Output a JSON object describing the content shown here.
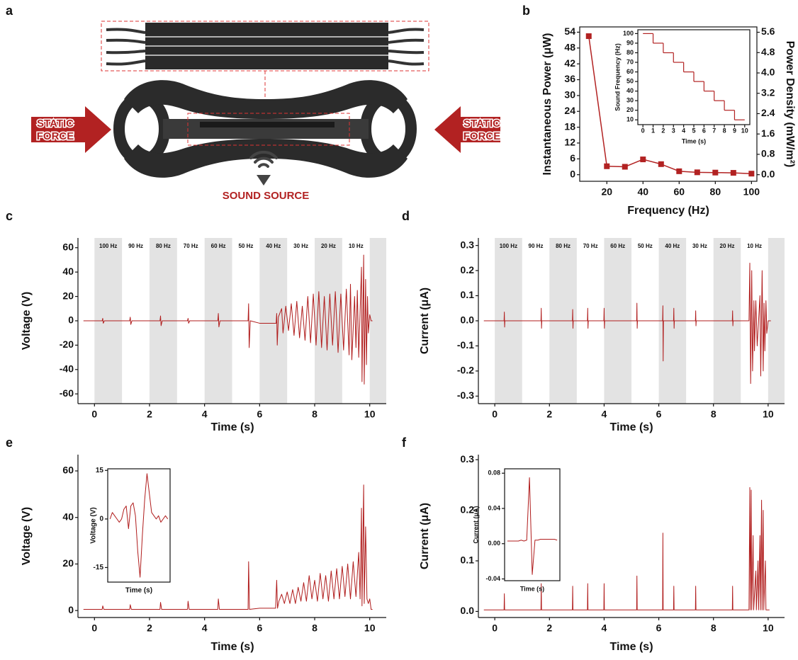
{
  "panel_a": {
    "label": "a",
    "left_force": [
      "STATIC",
      "FORCE"
    ],
    "right_force": [
      "STATIC",
      "FORCE"
    ],
    "sound_source": "SOUND SOURCE"
  },
  "chart_data": [
    {
      "panel": "b",
      "type": "line",
      "xlabel": "Frequency (Hz)",
      "ylabel": "Instantaneous Power (μW)",
      "y2label": "Power Density (mW/m²)",
      "x": [
        10,
        20,
        30,
        40,
        50,
        60,
        70,
        80,
        90,
        100
      ],
      "values": [
        52.5,
        3.2,
        3,
        5.8,
        4,
        1.3,
        0.9,
        0.8,
        0.7,
        0.4
      ],
      "color": "#b22222",
      "marker": "square",
      "box": true,
      "xlim": [
        5,
        103
      ],
      "xticks": [
        20,
        40,
        60,
        80,
        100
      ],
      "ylim": [
        -2.5,
        56
      ],
      "yticks": [
        0,
        6,
        12,
        18,
        24,
        30,
        36,
        42,
        48,
        54
      ],
      "y2lim": [
        -0.26,
        5.81
      ],
      "y2ticks": [
        {
          "value": 0,
          "label": "0.0"
        },
        0.8,
        1.6,
        2.4,
        3.2,
        {
          "value": 4,
          "label": "4.0"
        },
        4.8,
        5.6
      ],
      "inset": {
        "type": "line",
        "step": "post",
        "xlabel": "Time (s)",
        "ylabel": "Sound Frequency (Hz)",
        "color": "#b22222",
        "x": [
          0,
          1,
          2,
          3,
          4,
          5,
          6,
          7,
          8,
          9
        ],
        "values": [
          100,
          90,
          80,
          70,
          60,
          50,
          40,
          30,
          20,
          10
        ],
        "xlim": [
          -0.5,
          10.5
        ],
        "xticks": [
          0,
          1,
          2,
          3,
          4,
          5,
          6,
          7,
          8,
          9,
          10
        ],
        "ylim": [
          5,
          104
        ],
        "yticks": [
          10,
          20,
          30,
          40,
          50,
          60,
          70,
          80,
          90,
          100
        ]
      }
    },
    {
      "panel": "c",
      "type": "line",
      "xlabel": "Time (s)",
      "ylabel": "Voltage (V)",
      "color": "#b01c1c",
      "bands": [
        {
          "start": 0,
          "end": 1,
          "label": "100 Hz",
          "shaded": true
        },
        {
          "start": 1,
          "end": 2,
          "label": "90 Hz",
          "shaded": false
        },
        {
          "start": 2,
          "end": 3,
          "label": "80 Hz",
          "shaded": true
        },
        {
          "start": 3,
          "end": 4,
          "label": "70 Hz",
          "shaded": false
        },
        {
          "start": 4,
          "end": 5,
          "label": "60 Hz",
          "shaded": true
        },
        {
          "start": 5,
          "end": 6,
          "label": "50 Hz",
          "shaded": false
        },
        {
          "start": 6,
          "end": 7,
          "label": "40 Hz",
          "shaded": true
        },
        {
          "start": 7,
          "end": 8,
          "label": "30 Hz",
          "shaded": false
        },
        {
          "start": 8,
          "end": 9,
          "label": "20 Hz",
          "shaded": true
        },
        {
          "start": 9,
          "end": 10,
          "label": "10 Hz",
          "shaded": false
        },
        {
          "start": 10,
          "end": 10.6,
          "label": null,
          "shaded": true
        }
      ],
      "x": [
        -0.4,
        0.28,
        0.3,
        0.32,
        0.36,
        1.28,
        1.3,
        1.32,
        1.36,
        2.38,
        2.4,
        2.42,
        2.46,
        3.38,
        3.4,
        3.42,
        3.46,
        4.48,
        4.5,
        4.52,
        4.56,
        5.58,
        5.6,
        5.62,
        5.66,
        6.0,
        6.6,
        6.62,
        6.64,
        6.68,
        6.8,
        6.85,
        6.95,
        7.05,
        7.15,
        7.25,
        7.35,
        7.45,
        7.55,
        7.65,
        7.75,
        7.85,
        7.95,
        8.05,
        8.15,
        8.25,
        8.35,
        8.45,
        8.55,
        8.65,
        8.75,
        8.85,
        8.95,
        9.05,
        9.15,
        9.25,
        9.3,
        9.35,
        9.45,
        9.5,
        9.55,
        9.6,
        9.7,
        9.72,
        9.78,
        9.8,
        9.85,
        9.88,
        9.92,
        9.95,
        10.0,
        10.05,
        10.1
      ],
      "values": [
        0,
        0,
        2,
        -2,
        0,
        0,
        3,
        -3,
        0,
        0,
        4,
        -4,
        0,
        0,
        2,
        -2,
        0,
        0,
        6,
        -5,
        0,
        0,
        14,
        -22,
        0,
        -2,
        -2,
        6,
        -20,
        3,
        10,
        -10,
        12,
        -8,
        14,
        -12,
        16,
        -14,
        12,
        -16,
        20,
        -18,
        22,
        -20,
        24,
        -22,
        20,
        -24,
        22,
        -20,
        24,
        -26,
        22,
        -24,
        26,
        -28,
        30,
        -32,
        20,
        -22,
        25,
        -30,
        44,
        -50,
        54,
        -52,
        34,
        -36,
        20,
        -10,
        5,
        0,
        0
      ],
      "xlim": [
        -0.6,
        10.6
      ],
      "xticks": [
        0,
        2,
        4,
        6,
        8,
        10
      ],
      "ylim": [
        -68,
        68
      ],
      "yticks": [
        -60,
        -40,
        -20,
        0,
        20,
        40,
        60
      ]
    },
    {
      "panel": "d",
      "type": "line",
      "xlabel": "Time (s)",
      "ylabel": "Current (μA)",
      "color": "#b01c1c",
      "bands": [
        {
          "start": 0,
          "end": 1,
          "label": "100 Hz",
          "shaded": true
        },
        {
          "start": 1,
          "end": 2,
          "label": "90 Hz",
          "shaded": false
        },
        {
          "start": 2,
          "end": 3,
          "label": "80 Hz",
          "shaded": true
        },
        {
          "start": 3,
          "end": 4,
          "label": "70 Hz",
          "shaded": false
        },
        {
          "start": 4,
          "end": 5,
          "label": "60 Hz",
          "shaded": true
        },
        {
          "start": 5,
          "end": 6,
          "label": "50 Hz",
          "shaded": false
        },
        {
          "start": 6,
          "end": 7,
          "label": "40 Hz",
          "shaded": true
        },
        {
          "start": 7,
          "end": 8,
          "label": "30 Hz",
          "shaded": false
        },
        {
          "start": 8,
          "end": 9,
          "label": "20 Hz",
          "shaded": true
        },
        {
          "start": 9,
          "end": 10,
          "label": "10 Hz",
          "shaded": false
        },
        {
          "start": 10,
          "end": 10.6,
          "label": null,
          "shaded": true
        }
      ],
      "x": [
        -0.4,
        0.34,
        0.35,
        0.36,
        0.37,
        1.69,
        1.7,
        1.71,
        1.72,
        2.84,
        2.85,
        2.86,
        2.87,
        3.39,
        3.4,
        3.41,
        3.42,
        3.99,
        4.0,
        4.01,
        4.02,
        5.19,
        5.2,
        5.21,
        5.22,
        6.14,
        6.15,
        6.16,
        6.17,
        6.54,
        6.55,
        6.56,
        6.57,
        7.34,
        7.35,
        7.36,
        7.37,
        8.69,
        8.7,
        8.71,
        8.72,
        9.3,
        9.33,
        9.36,
        9.4,
        9.43,
        9.48,
        9.5,
        9.55,
        9.6,
        9.7,
        9.73,
        9.78,
        9.82,
        9.85,
        9.88,
        9.92,
        9.95,
        10.0,
        10.1
      ],
      "values": [
        0,
        0,
        0.035,
        -0.025,
        0,
        0,
        0.05,
        -0.03,
        0,
        0,
        0.045,
        -0.03,
        0,
        0,
        0.05,
        -0.03,
        0,
        0,
        0.05,
        -0.03,
        0,
        0,
        0.07,
        -0.03,
        0,
        0,
        0.06,
        -0.16,
        0,
        0,
        0.05,
        -0.03,
        0,
        0,
        0.04,
        -0.02,
        0,
        0,
        0.04,
        -0.02,
        0,
        0,
        0.23,
        -0.25,
        0.2,
        -0.2,
        0.08,
        -0.12,
        0.08,
        -0.1,
        0.1,
        -0.22,
        0.2,
        -0.2,
        0.07,
        -0.12,
        0.08,
        -0.05,
        0,
        0
      ],
      "xlim": [
        -0.6,
        10.6
      ],
      "xticks": [
        0,
        2,
        4,
        6,
        8,
        10
      ],
      "ylim": [
        -0.33,
        0.33
      ],
      "yticks": [
        -0.3,
        -0.2,
        -0.1,
        {
          "value": 0,
          "label": "0.0"
        },
        0.1,
        0.2,
        0.3
      ]
    },
    {
      "panel": "e",
      "type": "line",
      "xlabel": "Time (s)",
      "ylabel": "Voltage (V)",
      "color": "#b01c1c",
      "x": [
        -0.4,
        0.28,
        0.3,
        0.34,
        1.28,
        1.3,
        1.34,
        2.38,
        2.4,
        2.44,
        3.38,
        3.4,
        3.44,
        4.48,
        4.5,
        4.54,
        5.58,
        5.6,
        5.63,
        6.0,
        6.58,
        6.62,
        6.65,
        6.7,
        6.8,
        6.9,
        7.0,
        7.1,
        7.2,
        7.3,
        7.4,
        7.5,
        7.6,
        7.7,
        7.8,
        7.9,
        8.0,
        8.1,
        8.2,
        8.3,
        8.4,
        8.5,
        8.6,
        8.7,
        8.8,
        8.9,
        9.0,
        9.1,
        9.2,
        9.3,
        9.4,
        9.5,
        9.6,
        9.65,
        9.7,
        9.72,
        9.78,
        9.8,
        9.85,
        9.9,
        9.95,
        10.0,
        10.05,
        10.1
      ],
      "values": [
        0.5,
        0.5,
        2,
        0.5,
        0.5,
        2.5,
        0.5,
        0.5,
        3.5,
        0.5,
        0.5,
        4,
        0.5,
        0.5,
        5,
        0.5,
        0.5,
        21,
        0.5,
        1,
        1,
        13,
        1,
        4,
        7,
        3,
        8,
        3,
        9,
        3,
        10,
        4,
        12,
        4,
        15,
        5,
        13,
        4,
        16,
        5,
        15,
        4,
        17,
        5,
        18,
        5,
        19,
        6,
        20,
        5,
        21,
        6,
        25,
        5,
        44,
        2,
        54,
        3,
        36,
        5,
        3,
        5,
        0.5,
        0.5
      ],
      "xlim": [
        -0.6,
        10.6
      ],
      "xticks": [
        0,
        2,
        4,
        6,
        8,
        10
      ],
      "ylim": [
        -3,
        67
      ],
      "yticks": [
        0,
        20,
        40,
        60
      ],
      "inset": {
        "type": "line",
        "xlabel": "Time (s)",
        "ylabel": "Voltage (V)",
        "color": "#b01c1c",
        "values": [
          0,
          2,
          1,
          0,
          -1,
          0,
          3,
          4,
          -3,
          4,
          5,
          1,
          -10,
          -18,
          -5,
          6,
          14,
          8,
          2,
          1,
          0,
          1,
          -1,
          0,
          1,
          0
        ],
        "ylim": [
          -19.5,
          15.5
        ],
        "yticks": [
          -15,
          0,
          15
        ]
      }
    },
    {
      "panel": "f",
      "type": "line",
      "xlabel": "Time (s)",
      "ylabel": "Current (μA)",
      "color": "#b01c1c",
      "x": [
        -0.4,
        0.34,
        0.35,
        0.36,
        1.69,
        1.7,
        1.71,
        2.84,
        2.85,
        2.86,
        3.39,
        3.4,
        3.41,
        3.99,
        4.0,
        4.01,
        5.19,
        5.2,
        5.21,
        6.14,
        6.15,
        6.16,
        6.54,
        6.55,
        6.56,
        7.34,
        7.35,
        7.36,
        8.69,
        8.7,
        8.71,
        9.3,
        9.33,
        9.35,
        9.38,
        9.4,
        9.45,
        9.47,
        9.55,
        9.57,
        9.63,
        9.65,
        9.7,
        9.72,
        9.76,
        9.78,
        9.82,
        9.84,
        9.9,
        9.92,
        10.05
      ],
      "values": [
        0.003,
        0.003,
        0.035,
        0.003,
        0.003,
        0.055,
        0.003,
        0.003,
        0.05,
        0.003,
        0.003,
        0.055,
        0.003,
        0.003,
        0.055,
        0.003,
        0.003,
        0.07,
        0.003,
        0.003,
        0.155,
        0.003,
        0.003,
        0.05,
        0.003,
        0.003,
        0.05,
        0.003,
        0.003,
        0.05,
        0.003,
        0.003,
        0.245,
        0.003,
        0.24,
        0.003,
        0.15,
        0.003,
        0.08,
        0.003,
        0.1,
        0.003,
        0.15,
        0.003,
        0.22,
        0.003,
        0.2,
        0.003,
        0.1,
        0.003,
        0.003
      ],
      "xlim": [
        -0.6,
        10.6
      ],
      "xticks": [
        0,
        2,
        4,
        6,
        8,
        10
      ],
      "ylim": [
        -0.012,
        0.31
      ],
      "yticks": [
        {
          "value": 0,
          "label": "0.0"
        },
        0.1,
        0.2,
        0.3
      ],
      "inset": {
        "type": "line",
        "xlabel": "Time (s)",
        "ylabel": "Current (μA)",
        "color": "#b01c1c",
        "values": [
          0.003,
          0.003,
          0.003,
          0.003,
          0.003,
          0.004,
          0.003,
          0.004,
          0.075,
          -0.035,
          0.004,
          0.004,
          0.005,
          0.005,
          0.005,
          0.005,
          0.005,
          0.005,
          0.004
        ],
        "ylim": [
          -0.042,
          0.085
        ],
        "yticks": [
          -0.04,
          {
            "value": 0,
            "label": "0.00"
          },
          0.04,
          0.08
        ]
      }
    }
  ]
}
